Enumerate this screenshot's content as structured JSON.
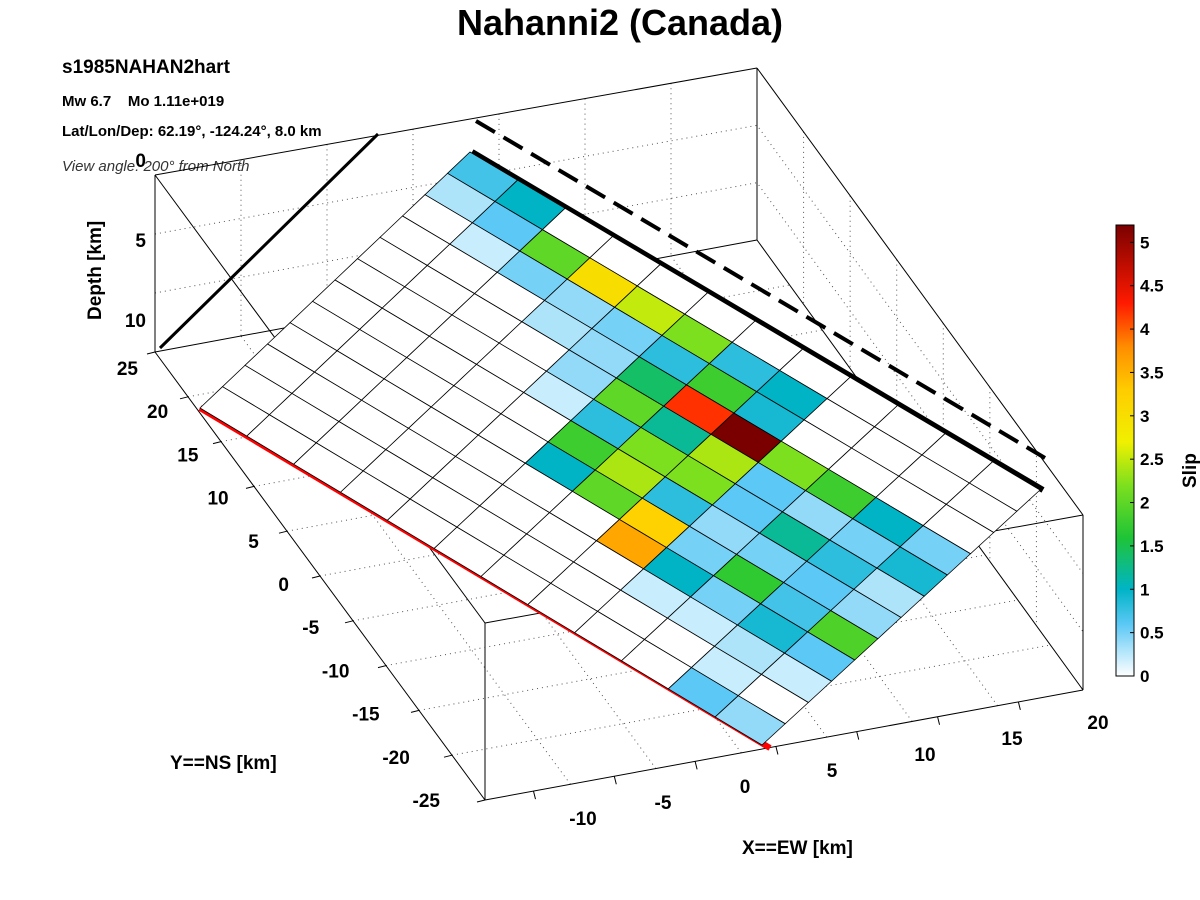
{
  "title": "Nahanni2 (Canada)",
  "info": {
    "event_id": "s1985NAHAN2hart",
    "magnitude": "Mw 6.7    Mo 1.11e+019",
    "location": "Lat/Lon/Dep: 62.19°, -124.24°, 8.0 km",
    "view": "View angle: 200° from North"
  },
  "chart_data": {
    "type": "heatmap",
    "title": "Nahanni2 (Canada)",
    "xlabel": "X==EW [km]",
    "ylabel": "Y==NS [km]",
    "zlabel": "Depth [km]",
    "colorbar_label": "Slip [m]",
    "x_ticks": [
      "-10",
      "-5",
      "0",
      "5",
      "10",
      "15",
      "20"
    ],
    "y_ticks": [
      "25",
      "20",
      "15",
      "10",
      "5",
      "0",
      "-5",
      "-10",
      "-15",
      "-20",
      "-25"
    ],
    "z_ticks": [
      "0",
      "5",
      "10"
    ],
    "colorbar_ticks": [
      "0",
      "0.5",
      "1",
      "1.5",
      "2",
      "2.5",
      "3",
      "3.5",
      "4",
      "4.5",
      "5"
    ],
    "colorbar_range": [
      0,
      5.2
    ],
    "grid": true,
    "slip_grid_note": "rows: down-dip (top edge first), columns: along strike",
    "slip": [
      [
        0.7,
        1.0,
        0.0,
        0.0,
        0.0,
        0.0,
        0.0,
        0.0,
        0.0,
        0.0,
        0.0,
        0.0
      ],
      [
        0.3,
        0.6,
        2.0,
        3.0,
        2.5,
        2.2,
        0.8,
        1.0,
        0.0,
        0.0,
        0.0,
        0.0
      ],
      [
        0.0,
        0.2,
        0.5,
        0.4,
        0.5,
        0.8,
        1.8,
        0.9,
        0.0,
        0.0,
        0.0,
        0.0
      ],
      [
        0.0,
        0.0,
        0.0,
        0.3,
        0.4,
        1.4,
        4.2,
        5.2,
        2.2,
        1.8,
        1.0,
        0.5
      ],
      [
        0.0,
        0.0,
        0.0,
        0.0,
        0.4,
        2.0,
        1.2,
        2.4,
        0.6,
        0.4,
        0.5,
        0.9
      ],
      [
        0.0,
        0.0,
        0.0,
        0.0,
        0.2,
        0.8,
        2.2,
        2.2,
        0.6,
        1.2,
        0.8,
        0.3
      ],
      [
        0.0,
        0.0,
        0.0,
        0.0,
        0.0,
        1.8,
        2.4,
        0.8,
        0.4,
        0.5,
        0.6,
        0.4
      ],
      [
        0.0,
        0.0,
        0.0,
        0.0,
        0.0,
        1.0,
        2.0,
        3.2,
        0.5,
        1.7,
        0.7,
        1.9
      ],
      [
        0.0,
        0.0,
        0.0,
        0.0,
        0.0,
        0.0,
        0.0,
        3.6,
        1.0,
        0.5,
        0.9,
        0.6
      ],
      [
        0.0,
        0.0,
        0.0,
        0.0,
        0.0,
        0.0,
        0.0,
        0.0,
        0.2,
        0.2,
        0.3,
        0.2
      ],
      [
        0.0,
        0.0,
        0.0,
        0.0,
        0.0,
        0.0,
        0.0,
        0.0,
        0.0,
        0.0,
        0.2,
        0.0
      ],
      [
        0.0,
        0.0,
        0.0,
        0.0,
        0.0,
        0.0,
        0.0,
        0.0,
        0.0,
        0.0,
        0.6,
        0.4
      ]
    ],
    "hypocenter_marker": "star",
    "colors": {
      "surface_trace": "#000000",
      "fault_projection": "#ff0000",
      "hypocenter": "#000000"
    }
  }
}
